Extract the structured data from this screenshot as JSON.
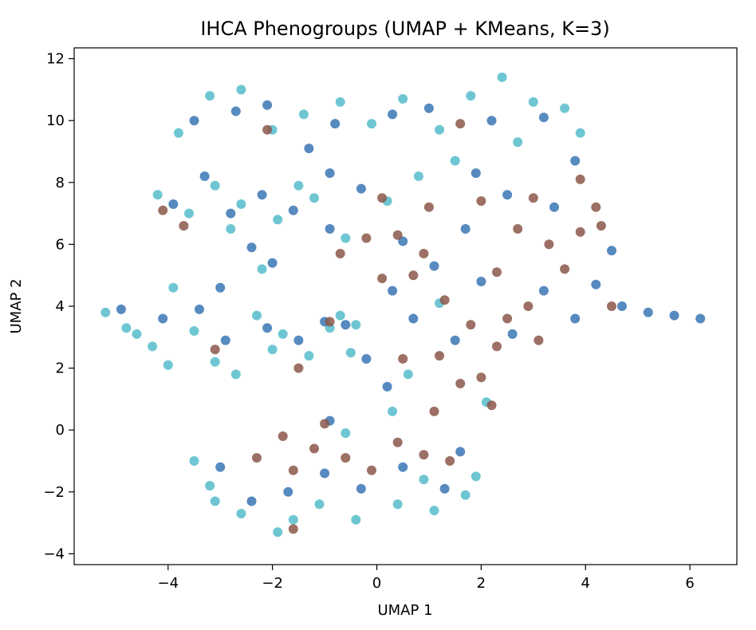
{
  "chart_data": {
    "type": "scatter",
    "title": "IHCA Phenogroups (UMAP + KMeans, K=3)",
    "xlabel": "UMAP 1",
    "ylabel": "UMAP 2",
    "xlim": [
      -5.8,
      6.9
    ],
    "ylim": [
      -4.35,
      12.35
    ],
    "xticks": [
      -4,
      -2,
      0,
      2,
      4,
      6
    ],
    "yticks": [
      -4,
      -2,
      0,
      2,
      4,
      6,
      8,
      10,
      12
    ],
    "xtick_labels": [
      "−4",
      "−2",
      "0",
      "2",
      "4",
      "6"
    ],
    "ytick_labels": [
      "−4",
      "−2",
      "0",
      "2",
      "4",
      "6",
      "8",
      "10",
      "12"
    ],
    "grid": false,
    "legend": "none",
    "series": [
      {
        "color": "#56bccb",
        "points": [
          [
            -5.2,
            3.8
          ],
          [
            -4.8,
            3.3
          ],
          [
            -4.3,
            2.7
          ],
          [
            -3.9,
            4.6
          ],
          [
            -3.5,
            3.2
          ],
          [
            -3.1,
            2.2
          ],
          [
            -2.7,
            1.8
          ],
          [
            -2.3,
            3.7
          ],
          [
            -1.8,
            3.1
          ],
          [
            -1.3,
            2.4
          ],
          [
            -0.9,
            3.3
          ],
          [
            -0.7,
            3.7
          ],
          [
            -4.2,
            7.6
          ],
          [
            -3.6,
            7.0
          ],
          [
            -3.1,
            7.9
          ],
          [
            -2.6,
            7.3
          ],
          [
            -1.9,
            6.8
          ],
          [
            -1.2,
            7.5
          ],
          [
            -0.6,
            6.2
          ],
          [
            0.2,
            7.4
          ],
          [
            -3.8,
            9.6
          ],
          [
            -3.2,
            10.8
          ],
          [
            -2.6,
            11.0
          ],
          [
            -2.0,
            9.7
          ],
          [
            -1.4,
            10.2
          ],
          [
            -0.7,
            10.6
          ],
          [
            -0.1,
            9.9
          ],
          [
            0.5,
            10.7
          ],
          [
            1.2,
            9.7
          ],
          [
            1.8,
            10.8
          ],
          [
            2.4,
            11.4
          ],
          [
            3.0,
            10.6
          ],
          [
            3.6,
            10.4
          ],
          [
            3.9,
            9.6
          ],
          [
            2.7,
            9.3
          ],
          [
            -3.5,
            -1.0
          ],
          [
            -3.1,
            -2.3
          ],
          [
            -2.6,
            -2.7
          ],
          [
            -1.9,
            -3.3
          ],
          [
            -1.1,
            -2.4
          ],
          [
            -0.4,
            -2.9
          ],
          [
            0.4,
            -2.4
          ],
          [
            1.1,
            -2.6
          ],
          [
            1.7,
            -2.1
          ],
          [
            1.9,
            -1.5
          ],
          [
            -0.6,
            -0.1
          ],
          [
            0.3,
            0.6
          ],
          [
            -0.5,
            2.5
          ],
          [
            -0.4,
            3.4
          ],
          [
            0.6,
            1.8
          ],
          [
            1.2,
            4.1
          ],
          [
            2.1,
            0.9
          ],
          [
            -2.8,
            6.5
          ],
          [
            -2.2,
            5.2
          ],
          [
            -1.5,
            7.9
          ],
          [
            0.8,
            8.2
          ],
          [
            1.5,
            8.7
          ],
          [
            -4.6,
            3.1
          ],
          [
            -4.0,
            2.1
          ],
          [
            -2.0,
            2.6
          ],
          [
            -3.2,
            -1.8
          ],
          [
            -1.6,
            -2.9
          ],
          [
            0.9,
            -1.6
          ]
        ]
      },
      {
        "color": "#3a76b4",
        "points": [
          [
            -4.9,
            3.9
          ],
          [
            -4.1,
            3.6
          ],
          [
            -3.4,
            3.9
          ],
          [
            -2.9,
            2.9
          ],
          [
            -2.1,
            3.3
          ],
          [
            -1.5,
            2.9
          ],
          [
            -1.0,
            3.5
          ],
          [
            -3.9,
            7.3
          ],
          [
            -3.3,
            8.2
          ],
          [
            -2.8,
            7.0
          ],
          [
            -2.2,
            7.6
          ],
          [
            -1.6,
            7.1
          ],
          [
            -0.9,
            8.3
          ],
          [
            -0.3,
            7.8
          ],
          [
            -3.5,
            10.0
          ],
          [
            -2.7,
            10.3
          ],
          [
            -2.1,
            10.5
          ],
          [
            -0.8,
            9.9
          ],
          [
            0.3,
            10.2
          ],
          [
            1.0,
            10.4
          ],
          [
            2.2,
            10.0
          ],
          [
            3.2,
            10.1
          ],
          [
            3.8,
            8.7
          ],
          [
            -0.6,
            3.4
          ],
          [
            -0.2,
            2.3
          ],
          [
            0.2,
            1.4
          ],
          [
            0.3,
            4.5
          ],
          [
            0.5,
            6.1
          ],
          [
            1.1,
            5.3
          ],
          [
            1.5,
            2.9
          ],
          [
            2.0,
            4.8
          ],
          [
            2.6,
            3.1
          ],
          [
            3.2,
            4.5
          ],
          [
            3.8,
            3.6
          ],
          [
            4.2,
            4.7
          ],
          [
            4.7,
            4.0
          ],
          [
            5.2,
            3.8
          ],
          [
            5.7,
            3.7
          ],
          [
            6.2,
            3.6
          ],
          [
            4.5,
            5.8
          ],
          [
            3.4,
            7.2
          ],
          [
            2.5,
            7.6
          ],
          [
            1.7,
            6.5
          ],
          [
            -3.0,
            -1.2
          ],
          [
            -2.4,
            -2.3
          ],
          [
            -1.7,
            -2.0
          ],
          [
            -1.0,
            -1.4
          ],
          [
            -0.3,
            -1.9
          ],
          [
            0.5,
            -1.2
          ],
          [
            1.3,
            -1.9
          ],
          [
            1.6,
            -0.7
          ],
          [
            -0.9,
            0.3
          ],
          [
            -2.4,
            5.9
          ],
          [
            -2.0,
            5.4
          ],
          [
            -3.0,
            4.6
          ],
          [
            -0.9,
            6.5
          ],
          [
            1.9,
            8.3
          ],
          [
            0.7,
            3.6
          ],
          [
            -1.3,
            9.1
          ]
        ]
      },
      {
        "color": "#8c574a",
        "points": [
          [
            0.9,
            5.7
          ],
          [
            1.3,
            4.2
          ],
          [
            1.8,
            3.4
          ],
          [
            2.3,
            5.1
          ],
          [
            2.7,
            6.5
          ],
          [
            3.3,
            6.0
          ],
          [
            3.9,
            6.4
          ],
          [
            4.3,
            6.6
          ],
          [
            3.6,
            5.2
          ],
          [
            2.9,
            4.0
          ],
          [
            2.3,
            2.7
          ],
          [
            1.6,
            1.5
          ],
          [
            1.1,
            0.6
          ],
          [
            0.5,
            2.3
          ],
          [
            0.1,
            4.9
          ],
          [
            -0.7,
            5.7
          ],
          [
            0.4,
            6.3
          ],
          [
            1.0,
            7.2
          ],
          [
            2.0,
            7.4
          ],
          [
            3.0,
            7.5
          ],
          [
            3.9,
            8.1
          ],
          [
            4.2,
            7.2
          ],
          [
            4.5,
            4.0
          ],
          [
            -1.8,
            -0.2
          ],
          [
            -1.2,
            -0.6
          ],
          [
            -0.6,
            -0.9
          ],
          [
            -0.1,
            -1.3
          ],
          [
            0.4,
            -0.4
          ],
          [
            0.9,
            -0.8
          ],
          [
            1.4,
            -1.0
          ],
          [
            -2.3,
            -0.9
          ],
          [
            -1.6,
            -1.3
          ],
          [
            -1.0,
            0.2
          ],
          [
            2.0,
            1.7
          ],
          [
            2.5,
            3.6
          ],
          [
            3.1,
            2.9
          ],
          [
            -1.6,
            -3.2
          ],
          [
            -4.1,
            7.1
          ],
          [
            -3.7,
            6.6
          ],
          [
            -2.1,
            9.7
          ],
          [
            0.1,
            7.5
          ],
          [
            1.6,
            9.9
          ],
          [
            -1.5,
            2.0
          ],
          [
            -0.9,
            3.5
          ],
          [
            -3.1,
            2.6
          ],
          [
            -0.2,
            6.2
          ],
          [
            1.2,
            2.4
          ],
          [
            2.2,
            0.8
          ],
          [
            0.7,
            5.0
          ]
        ]
      }
    ]
  }
}
